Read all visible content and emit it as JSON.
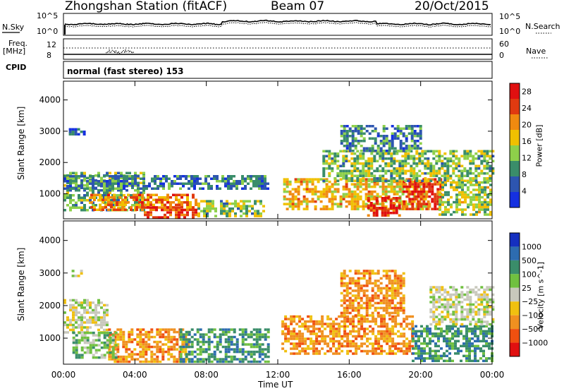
{
  "header": {
    "station_title": "Zhongshan Station (fitACF)",
    "beam": "Beam 07",
    "date": "20/Oct/2015"
  },
  "top_panels": {
    "nsky_label": "N.Sky",
    "nsky_scale_top": "10^5",
    "nsky_scale_bottom": "10^0",
    "nsearch_label": "N.Search",
    "nsearch_scale_top": "10^5",
    "nsearch_scale_bottom": "10^0",
    "freq_label": "Freq.",
    "freq_unit": "[MHz]",
    "freq_tick_top": "12",
    "freq_tick_bottom": "8",
    "nave_label": "Nave",
    "nave_tick_top": "60",
    "nave_tick_bottom": "0",
    "cpid_label": "CPID",
    "cpid_text": "normal (fast stereo) 153"
  },
  "chart_data": [
    {
      "type": "heatmap",
      "panel": "power",
      "xlabel": "Time UT",
      "ylabel": "Slant Range [km]",
      "xlim": [
        0,
        24
      ],
      "ylim": [
        200,
        4600
      ],
      "x_ticks": [
        "00:00",
        "04:00",
        "08:00",
        "12:00",
        "16:00",
        "20:00",
        "00:00"
      ],
      "y_ticks": [
        1000,
        2000,
        3000,
        4000
      ],
      "colorbar": {
        "label": "Power [dB]",
        "ticks": [
          4,
          8,
          12,
          16,
          20,
          24,
          28
        ],
        "range": [
          0,
          30
        ],
        "colors": [
          "#1530e0",
          "#2d55b0",
          "#3a8d6a",
          "#8ed04a",
          "#f0c000",
          "#f08a10",
          "#e03a10",
          "#e01010"
        ]
      },
      "regions": [
        {
          "t0": 0.0,
          "t1": 4.5,
          "r0": 500,
          "r1": 1700,
          "level": 0.35
        },
        {
          "t0": 1.5,
          "t1": 7.5,
          "r0": 500,
          "r1": 1000,
          "level": 0.75
        },
        {
          "t0": 4.5,
          "t1": 7.5,
          "r0": 250,
          "r1": 600,
          "level": 0.9
        },
        {
          "t0": 0.0,
          "t1": 11.5,
          "r0": 1200,
          "r1": 1600,
          "level": 0.22
        },
        {
          "t0": 7.5,
          "t1": 11.2,
          "r0": 300,
          "r1": 800,
          "level": 0.4
        },
        {
          "t0": 12.3,
          "t1": 20.5,
          "r0": 500,
          "r1": 1500,
          "level": 0.6
        },
        {
          "t0": 17.0,
          "t1": 18.8,
          "r0": 300,
          "r1": 900,
          "level": 0.92
        },
        {
          "t0": 19.0,
          "t1": 21.2,
          "r0": 500,
          "r1": 1500,
          "level": 0.88
        },
        {
          "t0": 14.5,
          "t1": 24.0,
          "r0": 1400,
          "r1": 2400,
          "level": 0.4
        },
        {
          "t0": 21.0,
          "t1": 24.0,
          "r0": 300,
          "r1": 1400,
          "level": 0.45
        },
        {
          "t0": 15.5,
          "t1": 20.0,
          "r0": 2400,
          "r1": 3200,
          "level": 0.25
        },
        {
          "t0": 0.3,
          "t1": 1.2,
          "r0": 2900,
          "r1": 3100,
          "level": 0.1
        }
      ]
    },
    {
      "type": "heatmap",
      "panel": "velocity",
      "xlabel": "Time UT",
      "ylabel": "Slant Range [km]",
      "xlim": [
        0,
        24
      ],
      "ylim": [
        200,
        4600
      ],
      "x_ticks": [
        "00:00",
        "04:00",
        "08:00",
        "12:00",
        "16:00",
        "20:00",
        "00:00"
      ],
      "y_ticks": [
        1000,
        2000,
        3000,
        4000
      ],
      "colorbar": {
        "label": "Velocity [m s^-1]",
        "ticks": [
          "1000",
          "500",
          "100",
          "25",
          "−25",
          "−100",
          "−500",
          "−1000"
        ],
        "colors": [
          "#1530c0",
          "#2d6cb0",
          "#3a8d6a",
          "#70c040",
          "#c8c8bc",
          "#f0c010",
          "#f09020",
          "#f05010",
          "#e01010"
        ]
      },
      "regions": [
        {
          "t0": 0.0,
          "t1": 2.5,
          "r0": 1200,
          "r1": 2200,
          "level": 4
        },
        {
          "t0": 2.5,
          "t1": 7.0,
          "r0": 300,
          "r1": 1300,
          "level": 6
        },
        {
          "t0": 0.5,
          "t1": 3.0,
          "r0": 400,
          "r1": 1200,
          "level": 3
        },
        {
          "t0": 6.5,
          "t1": 11.5,
          "r0": 300,
          "r1": 1300,
          "level": 2
        },
        {
          "t0": 12.2,
          "t1": 19.5,
          "r0": 500,
          "r1": 1700,
          "level": 6
        },
        {
          "t0": 15.5,
          "t1": 19.0,
          "r0": 1700,
          "r1": 3100,
          "level": 6
        },
        {
          "t0": 19.5,
          "t1": 24.0,
          "r0": 300,
          "r1": 1400,
          "level": 2
        },
        {
          "t0": 20.5,
          "t1": 24.0,
          "r0": 1400,
          "r1": 2600,
          "level": 4
        },
        {
          "t0": 0.3,
          "t1": 1.0,
          "r0": 2900,
          "r1": 3100,
          "level": 4
        }
      ]
    }
  ]
}
